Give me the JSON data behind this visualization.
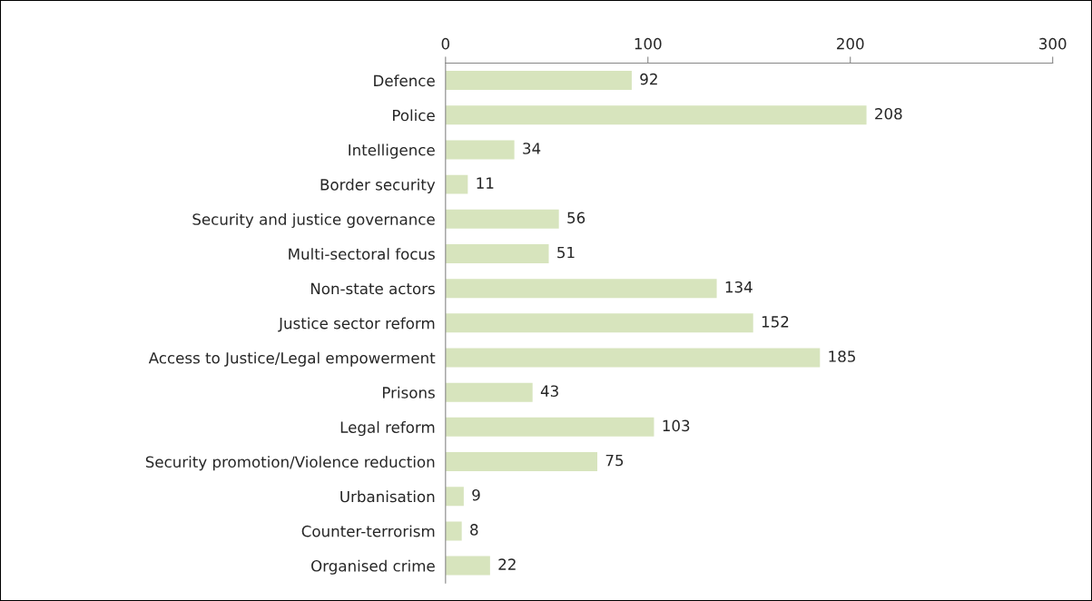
{
  "chart_data": {
    "type": "bar",
    "orientation": "horizontal",
    "categories": [
      "Defence",
      "Police",
      "Intelligence",
      "Border security",
      "Security and justice governance",
      "Multi-sectoral focus",
      "Non-state actors",
      "Justice sector reform",
      "Access to Justice/Legal empowerment",
      "Prisons",
      "Legal reform",
      "Security promotion/Violence reduction",
      "Urbanisation",
      "Counter-terrorism",
      "Organised crime"
    ],
    "values": [
      92,
      208,
      34,
      11,
      56,
      51,
      134,
      152,
      185,
      43,
      103,
      75,
      9,
      8,
      22
    ],
    "color": "#d7e4bd",
    "xlim": [
      0,
      300
    ],
    "xticks": [
      0,
      100,
      200,
      300
    ],
    "data_labels": true,
    "grid": false,
    "legend": false
  }
}
